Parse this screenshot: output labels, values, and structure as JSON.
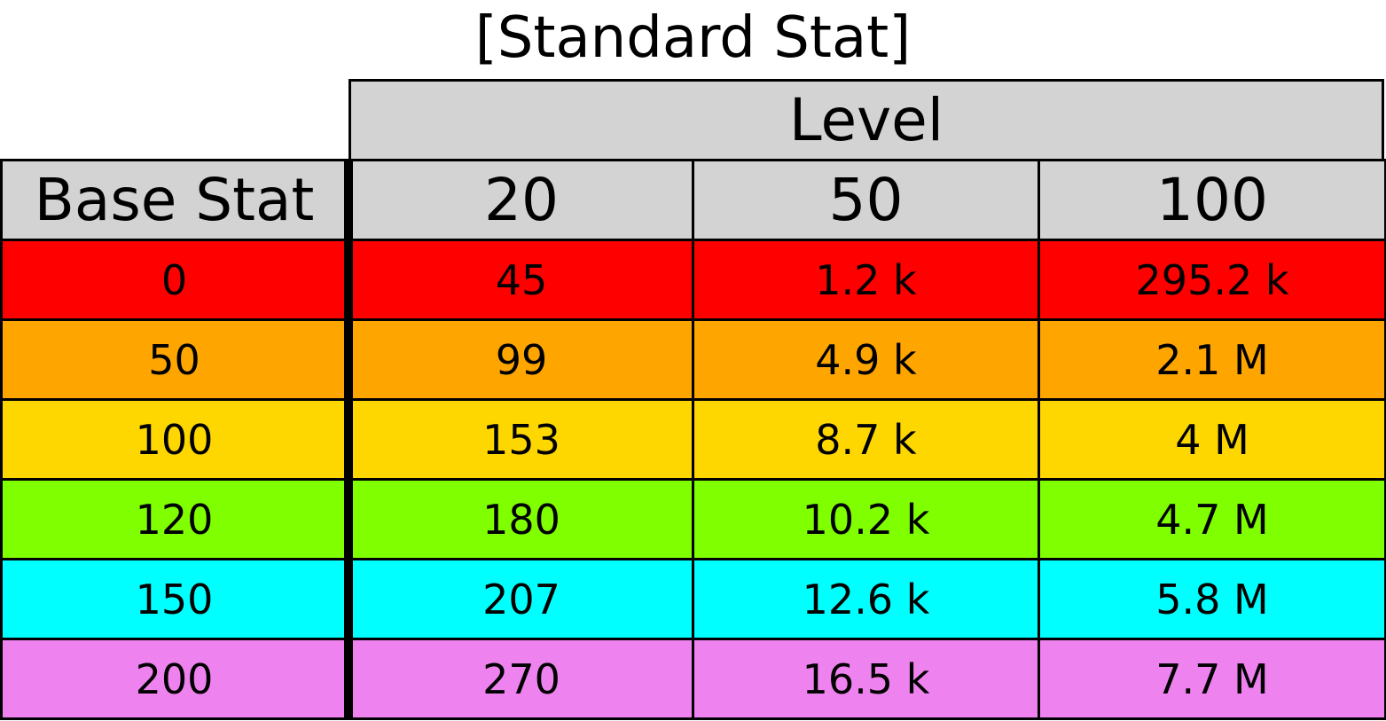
{
  "chart_data": {
    "type": "table",
    "title": "[Standard Stat]",
    "column_group_header": "Level",
    "row_header": "Base Stat",
    "columns": [
      "20",
      "50",
      "100"
    ],
    "header_color": "#d3d3d3",
    "rows": [
      {
        "base": "0",
        "color": "#ff0000",
        "values": [
          "45",
          "1.2 k",
          "295.2 k"
        ]
      },
      {
        "base": "50",
        "color": "#ffa500",
        "values": [
          "99",
          "4.9 k",
          "2.1 M"
        ]
      },
      {
        "base": "100",
        "color": "#ffd700",
        "values": [
          "153",
          "8.7 k",
          "4 M"
        ]
      },
      {
        "base": "120",
        "color": "#7fff00",
        "values": [
          "180",
          "10.2 k",
          "4.7 M"
        ]
      },
      {
        "base": "150",
        "color": "#00ffff",
        "values": [
          "207",
          "12.6 k",
          "5.8 M"
        ]
      },
      {
        "base": "200",
        "color": "#ee82ee",
        "values": [
          "270",
          "16.5 k",
          "7.7 M"
        ]
      }
    ]
  }
}
